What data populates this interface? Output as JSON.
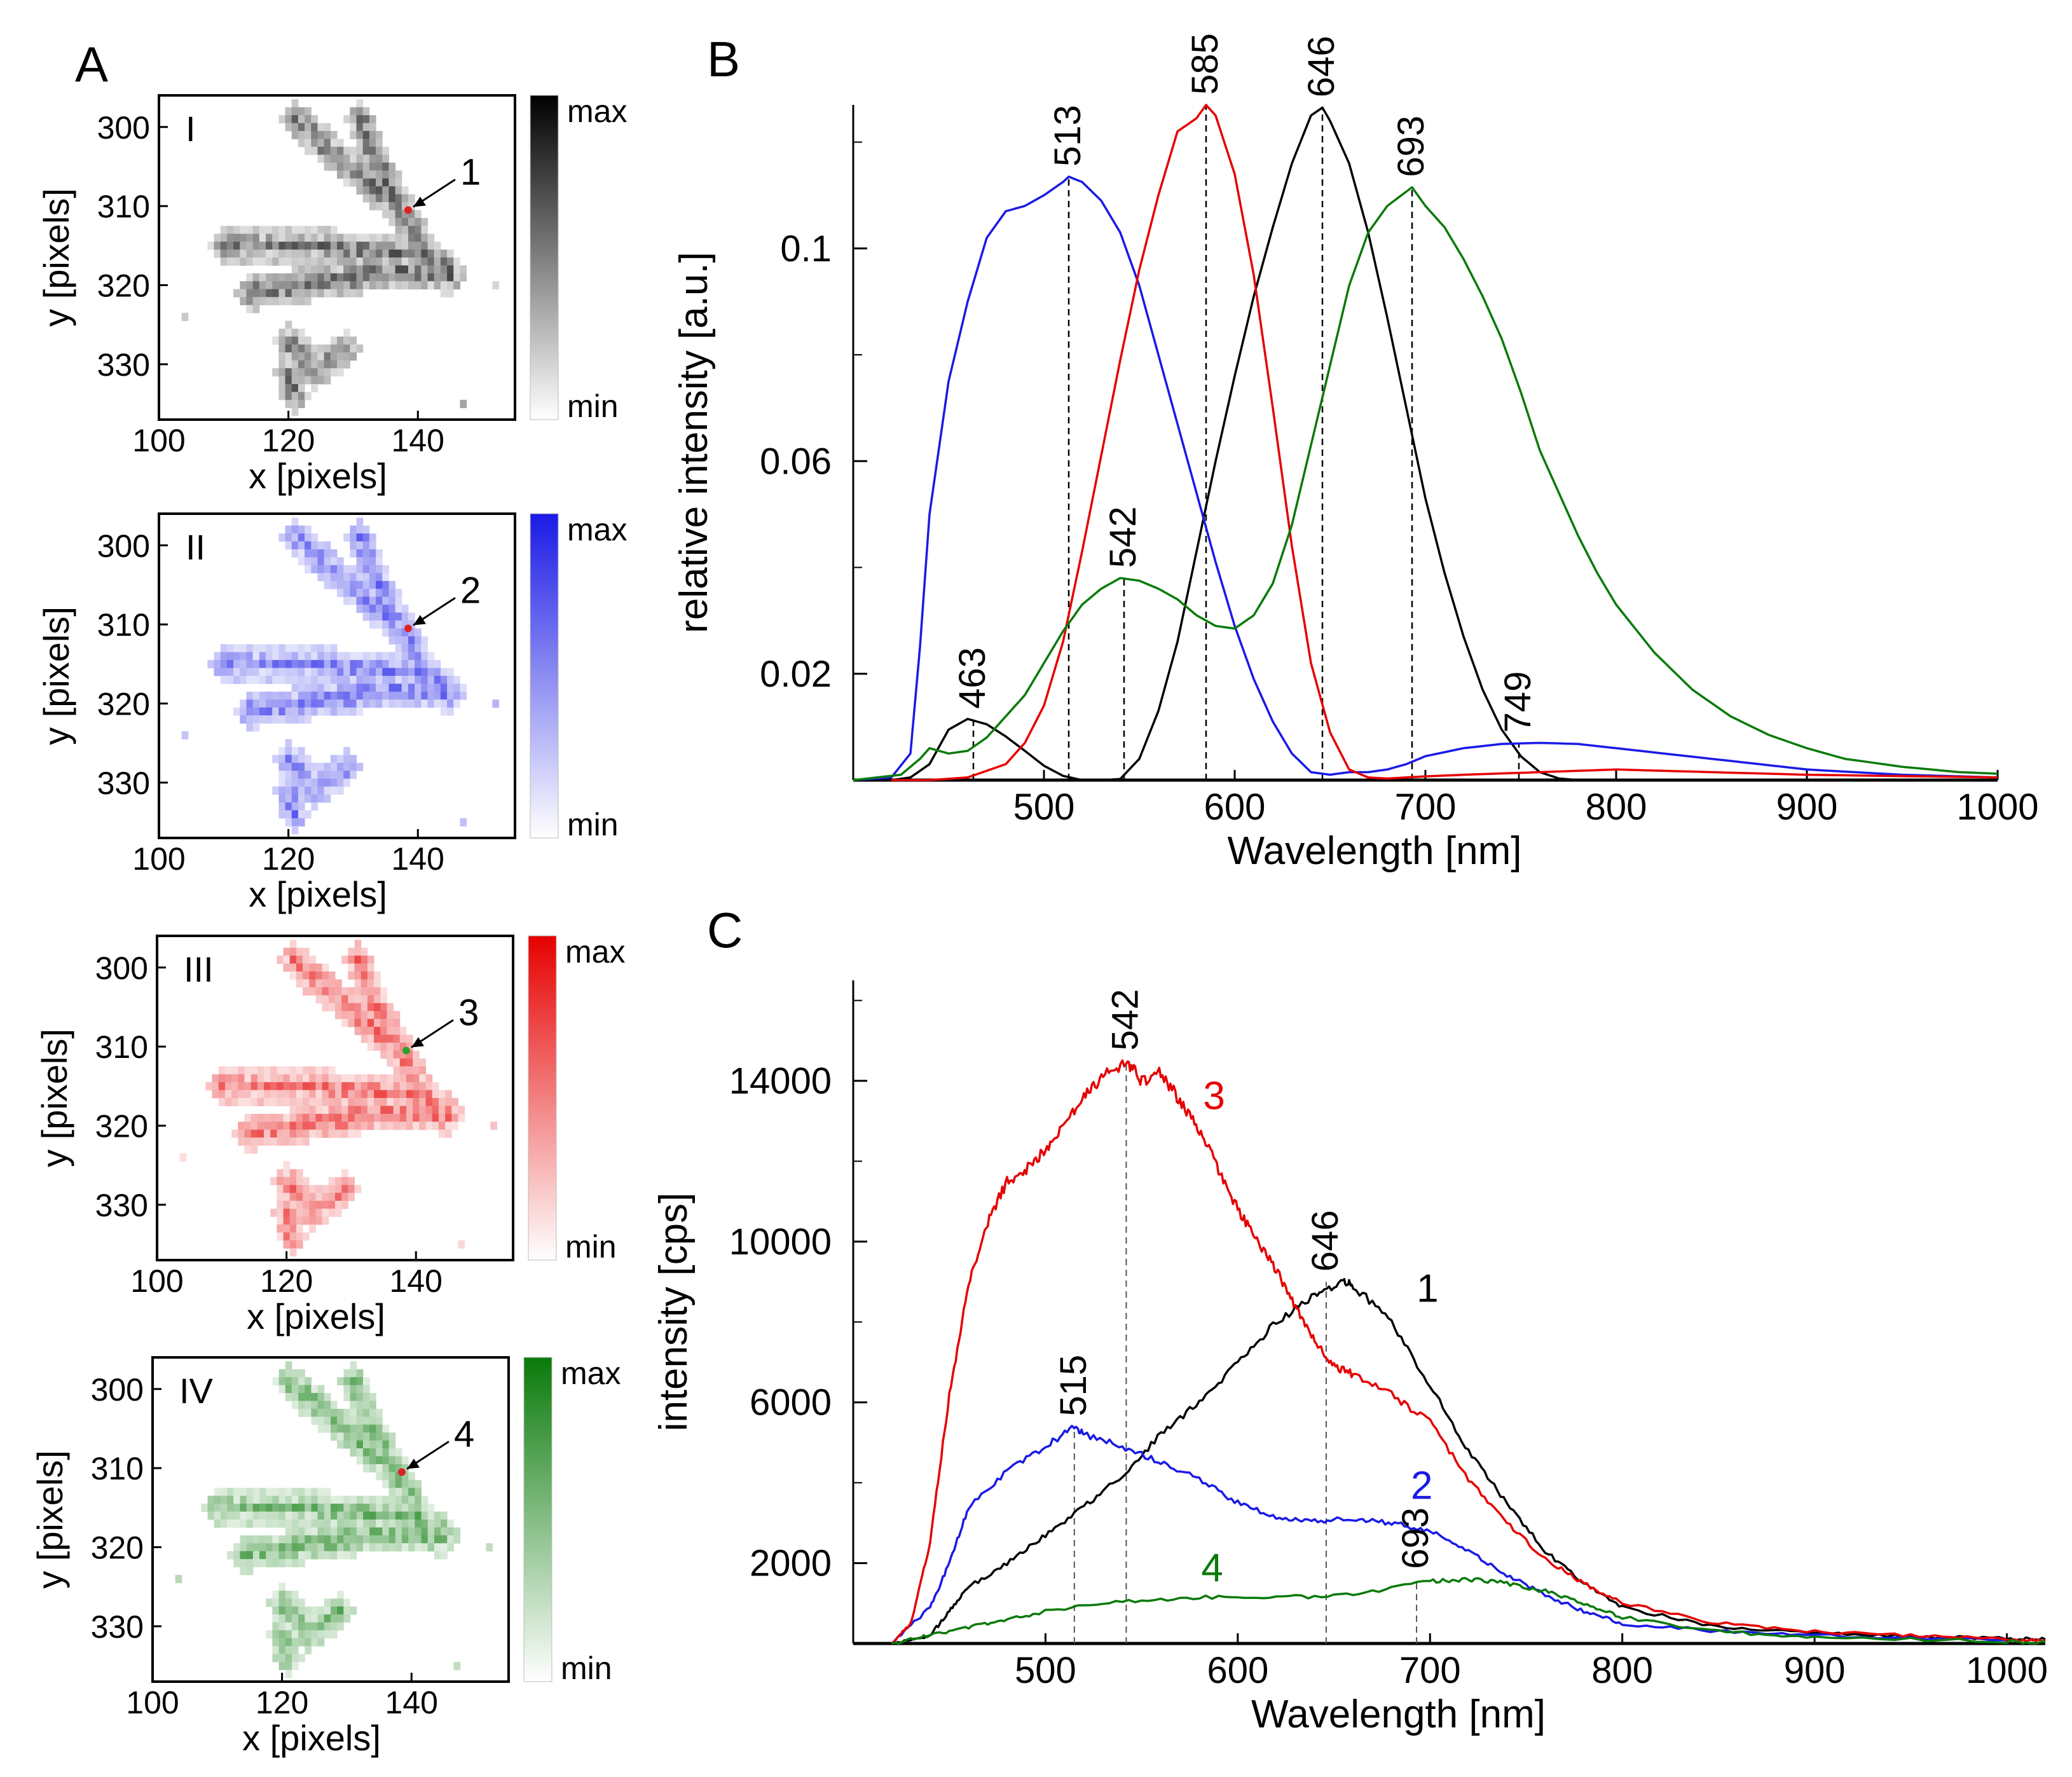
{
  "colors": {
    "black": "#000000",
    "blue": "#1a1ae6",
    "red": "#e60000",
    "green": "#0a7a0a",
    "point_red": "#dd2222",
    "point_green": "#2ea02e"
  },
  "panel_a": {
    "label": "A",
    "xlabel": "x [pixels]",
    "ylabel": "y [pixels]",
    "xticks": [
      "100",
      "120",
      "140"
    ],
    "yticks": [
      "300",
      "310",
      "320",
      "330"
    ],
    "colorbar": {
      "max_label": "max",
      "min_label": "min"
    },
    "maps": [
      {
        "roman": "I",
        "number": "1",
        "color": "#000000",
        "point_color": "#dd2222"
      },
      {
        "roman": "II",
        "number": "2",
        "color": "#1a1ae6",
        "point_color": "#dd2222"
      },
      {
        "roman": "III",
        "number": "3",
        "color": "#e60000",
        "point_color": "#2ea02e"
      },
      {
        "roman": "IV",
        "number": "4",
        "color": "#0a7a0a",
        "point_color": "#dd2222"
      }
    ]
  },
  "chart_data": [
    {
      "panel": "B",
      "type": "line",
      "xlabel": "Wavelength [nm]",
      "ylabel": "relative intensity [a.u.]",
      "xlim": [
        400,
        1000
      ],
      "ylim": [
        0,
        0.127
      ],
      "xticks": [
        500,
        600,
        700,
        800,
        900,
        1000
      ],
      "yticks": [
        0.02,
        0.06,
        0.1
      ],
      "ytick_labels": [
        "0.02",
        "0.06",
        "0.1"
      ],
      "series": [
        {
          "name": "black",
          "color": "#000000",
          "x": [
            420,
            430,
            440,
            450,
            460,
            470,
            480,
            490,
            500,
            510,
            520,
            530,
            540,
            550,
            560,
            570,
            580,
            590,
            600,
            610,
            620,
            630,
            640,
            646,
            650,
            660,
            670,
            680,
            690,
            700,
            710,
            720,
            730,
            740,
            750,
            760,
            770,
            780,
            790,
            800
          ],
          "y": [
            0,
            0.0005,
            0.003,
            0.0095,
            0.0115,
            0.0105,
            0.0082,
            0.0055,
            0.0027,
            0.0008,
            0,
            0,
            0.0002,
            0.004,
            0.013,
            0.026,
            0.043,
            0.06,
            0.076,
            0.091,
            0.104,
            0.116,
            0.125,
            0.1265,
            0.124,
            0.116,
            0.103,
            0.087,
            0.07,
            0.053,
            0.039,
            0.027,
            0.017,
            0.0095,
            0.0045,
            0.0015,
            0.0003,
            0,
            0,
            0
          ]
        },
        {
          "name": "blue",
          "color": "#1a1ae6",
          "x": [
            400,
            420,
            430,
            435,
            440,
            450,
            460,
            470,
            480,
            490,
            500,
            510,
            513,
            520,
            530,
            540,
            550,
            560,
            570,
            580,
            590,
            600,
            610,
            620,
            630,
            640,
            650,
            660,
            670,
            680,
            690,
            700,
            720,
            740,
            760,
            780,
            800,
            850,
            900,
            950,
            1000
          ],
          "y": [
            0,
            0.0005,
            0.005,
            0.025,
            0.05,
            0.075,
            0.09,
            0.102,
            0.107,
            0.108,
            0.11,
            0.1125,
            0.1135,
            0.1125,
            0.109,
            0.103,
            0.093,
            0.08,
            0.067,
            0.054,
            0.041,
            0.029,
            0.019,
            0.011,
            0.005,
            0.0015,
            0.001,
            0.0015,
            0.0015,
            0.002,
            0.003,
            0.0045,
            0.006,
            0.0068,
            0.007,
            0.0068,
            0.006,
            0.004,
            0.002,
            0.001,
            0.0005
          ]
        },
        {
          "name": "red",
          "color": "#e60000",
          "x": [
            420,
            440,
            460,
            480,
            490,
            500,
            510,
            520,
            530,
            540,
            550,
            560,
            570,
            580,
            585,
            590,
            600,
            610,
            620,
            630,
            640,
            650,
            660,
            670,
            680,
            690,
            700,
            720,
            760,
            800,
            850,
            900,
            1000
          ],
          "y": [
            0,
            0,
            0.0005,
            0.003,
            0.007,
            0.014,
            0.026,
            0.043,
            0.061,
            0.079,
            0.096,
            0.11,
            0.122,
            0.1245,
            0.127,
            0.125,
            0.114,
            0.095,
            0.07,
            0.044,
            0.022,
            0.009,
            0.002,
            0.0005,
            0.0003,
            0.0005,
            0.0007,
            0.001,
            0.0015,
            0.002,
            0.0015,
            0.001,
            0.0005
          ]
        },
        {
          "name": "green",
          "color": "#0a7a0a",
          "x": [
            400,
            425,
            435,
            440,
            445,
            450,
            460,
            470,
            480,
            490,
            500,
            510,
            520,
            530,
            540,
            550,
            560,
            570,
            580,
            590,
            600,
            610,
            620,
            630,
            640,
            650,
            660,
            670,
            680,
            693,
            700,
            710,
            720,
            730,
            740,
            750,
            760,
            770,
            780,
            790,
            800,
            820,
            840,
            860,
            880,
            900,
            920,
            950,
            980,
            1000
          ],
          "y": [
            0,
            0.001,
            0.004,
            0.006,
            0.0055,
            0.005,
            0.0055,
            0.008,
            0.012,
            0.016,
            0.022,
            0.028,
            0.033,
            0.036,
            0.038,
            0.0375,
            0.036,
            0.034,
            0.031,
            0.029,
            0.0285,
            0.031,
            0.037,
            0.048,
            0.063,
            0.078,
            0.093,
            0.103,
            0.108,
            0.1115,
            0.108,
            0.104,
            0.098,
            0.091,
            0.083,
            0.073,
            0.062,
            0.054,
            0.046,
            0.039,
            0.033,
            0.024,
            0.017,
            0.012,
            0.0085,
            0.006,
            0.004,
            0.0025,
            0.0015,
            0.0012
          ]
        }
      ],
      "peak_markers": [
        {
          "x": 513,
          "y": 0.1135,
          "label": "513"
        },
        {
          "x": 585,
          "y": 0.127,
          "label": "585"
        },
        {
          "x": 646,
          "y": 0.1265,
          "label": "646"
        },
        {
          "x": 693,
          "y": 0.1115,
          "label": "693"
        },
        {
          "x": 542,
          "y": 0.038,
          "label": "542"
        },
        {
          "x": 463,
          "y": 0.0115,
          "label": "463"
        },
        {
          "x": 749,
          "y": 0.007,
          "label": "749"
        }
      ]
    },
    {
      "panel": "C",
      "type": "line",
      "xlabel": "Wavelength [nm]",
      "ylabel": "intensity [cps]",
      "xlim": [
        400,
        1020
      ],
      "ylim": [
        0,
        16500
      ],
      "xticks": [
        500,
        600,
        700,
        800,
        900,
        1000
      ],
      "yticks": [
        2000,
        6000,
        10000,
        14000
      ],
      "series": [
        {
          "name": "1",
          "color": "#000000",
          "x": [
            420,
            440,
            450,
            460,
            480,
            500,
            520,
            540,
            560,
            580,
            600,
            620,
            640,
            655,
            660,
            680,
            700,
            720,
            740,
            760,
            780,
            800,
            850,
            900,
            950,
            1000,
            1020
          ],
          "y": [
            0,
            200,
            800,
            1400,
            2000,
            2700,
            3400,
            4200,
            5200,
            6000,
            7000,
            8000,
            8700,
            9000,
            8900,
            8000,
            6400,
            4800,
            3500,
            2300,
            1500,
            900,
            400,
            250,
            180,
            120,
            100
          ]
        },
        {
          "name": "2",
          "color": "#1a1ae6",
          "x": [
            420,
            440,
            450,
            460,
            480,
            500,
            515,
            520,
            540,
            560,
            580,
            600,
            620,
            640,
            660,
            680,
            700,
            720,
            740,
            760,
            780,
            800,
            850,
            900,
            1000
          ],
          "y": [
            0,
            900,
            2000,
            3400,
            4300,
            4900,
            5400,
            5200,
            4900,
            4500,
            4100,
            3500,
            3150,
            3050,
            3100,
            3000,
            2800,
            2300,
            1700,
            1200,
            800,
            500,
            300,
            200,
            80
          ]
        },
        {
          "name": "3",
          "color": "#e60000",
          "x": [
            420,
            430,
            440,
            450,
            460,
            470,
            480,
            490,
            500,
            510,
            520,
            530,
            542,
            550,
            560,
            570,
            580,
            590,
            600,
            610,
            620,
            630,
            640,
            650,
            660,
            680,
            700,
            720,
            740,
            760,
            780,
            800,
            850,
            900,
            950,
            1000,
            1020
          ],
          "y": [
            0,
            500,
            2500,
            6200,
            8900,
            10500,
            11500,
            11800,
            12300,
            13000,
            13600,
            14100,
            14500,
            14000,
            14200,
            13500,
            12800,
            11800,
            10800,
            10000,
            9300,
            8400,
            7500,
            6900,
            6700,
            6200,
            5500,
            4100,
            3000,
            2100,
            1500,
            1000,
            500,
            300,
            200,
            100,
            80
          ]
        },
        {
          "name": "4",
          "color": "#0a7a0a",
          "x": [
            420,
            440,
            460,
            480,
            500,
            540,
            580,
            620,
            660,
            700,
            720,
            740,
            760,
            780,
            800,
            850,
            900,
            1000,
            1020
          ],
          "y": [
            0,
            200,
            400,
            600,
            800,
            1050,
            1150,
            1150,
            1200,
            1550,
            1600,
            1500,
            1300,
            1000,
            650,
            300,
            150,
            50,
            30
          ]
        }
      ],
      "peak_markers": [
        {
          "x": 542,
          "y": 14500,
          "label": "542"
        },
        {
          "x": 646,
          "y": 9000,
          "label": "646"
        },
        {
          "x": 515,
          "y": 5400,
          "label": "515"
        },
        {
          "x": 693,
          "y": 1600,
          "label": "693"
        }
      ],
      "curve_labels": [
        {
          "text": "3",
          "x": 582,
          "y": 13300,
          "color": "#e60000"
        },
        {
          "text": "1",
          "x": 693,
          "y": 8500,
          "color": "#000000"
        },
        {
          "text": "2",
          "x": 690,
          "y": 3600,
          "color": "#1a1ae6"
        },
        {
          "text": "4",
          "x": 581,
          "y": 1550,
          "color": "#0a7a0a"
        }
      ]
    }
  ],
  "panel_labels": {
    "b": "B",
    "c": "C"
  }
}
